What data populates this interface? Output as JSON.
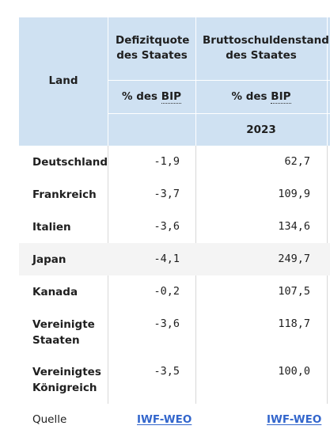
{
  "table": {
    "headers": {
      "land": "Land",
      "defizit": "Defizitquote des Staates",
      "schulden": "Bruttoschuldenstand des Staates",
      "unit_prefix": "% des",
      "unit_abbr": "BIP",
      "year": "2023"
    },
    "rows": [
      {
        "land": "Deutschland",
        "defizit": "-1,9",
        "schulden": "62,7"
      },
      {
        "land": "Frankreich",
        "defizit": "-3,7",
        "schulden": "109,9"
      },
      {
        "land": "Italien",
        "defizit": "-3,6",
        "schulden": "134,6"
      },
      {
        "land": "Japan",
        "defizit": "-4,1",
        "schulden": "249,7"
      },
      {
        "land": "Kanada",
        "defizit": "-0,2",
        "schulden": "107,5"
      },
      {
        "land": "Vereinigte Staaten",
        "defizit": "-3,6",
        "schulden": "118,7"
      },
      {
        "land": "Vereinigtes Königreich",
        "defizit": "-3,5",
        "schulden": "100,0"
      }
    ],
    "source": {
      "label": "Quelle",
      "link1": "IWF-WEO",
      "link2": "IWF-WEO"
    }
  },
  "colors": {
    "header_bg": "#cfe1f2",
    "link": "#3366cc",
    "alt_row": "#f4f4f4"
  }
}
